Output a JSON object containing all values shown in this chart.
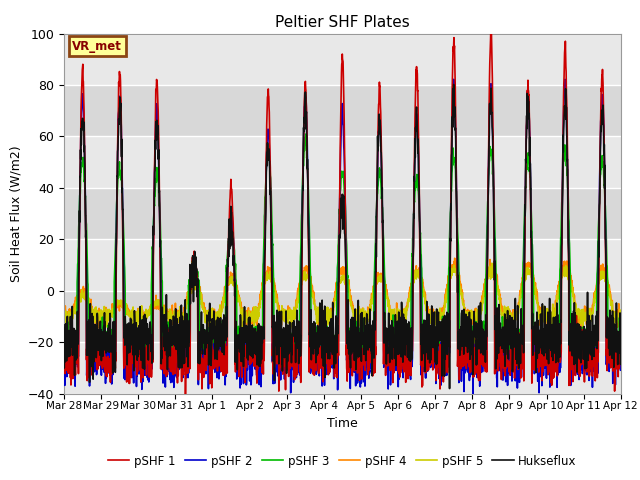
{
  "title": "Peltier SHF Plates",
  "xlabel": "Time",
  "ylabel": "Soil Heat Flux (W/m2)",
  "ylim": [
    -40,
    100
  ],
  "n_days": 15,
  "xtick_labels": [
    "Mar 28",
    "Mar 29",
    "Mar 30",
    "Mar 31",
    "Apr 1",
    "Apr 2",
    "Apr 3",
    "Apr 4",
    "Apr 5",
    "Apr 6",
    "Apr 7",
    "Apr 8",
    "Apr 9",
    "Apr 10",
    "Apr 11",
    "Apr 12"
  ],
  "background_color": "#ffffff",
  "plot_bg_color": "#d8d8d8",
  "grid_color": "#ffffff",
  "band_color_light": "#e8e8e8",
  "annotation_text": "VR_met",
  "annotation_bg": "#ffff99",
  "annotation_border": "#8b4513",
  "series": {
    "pSHF 1": {
      "color": "#cc0000",
      "lw": 1.2
    },
    "pSHF 2": {
      "color": "#0000cc",
      "lw": 1.2
    },
    "pSHF 3": {
      "color": "#00bb00",
      "lw": 1.2
    },
    "pSHF 4": {
      "color": "#ff8800",
      "lw": 1.2
    },
    "pSHF 5": {
      "color": "#cccc00",
      "lw": 1.2
    },
    "Hukseflux": {
      "color": "#111111",
      "lw": 1.2
    }
  }
}
